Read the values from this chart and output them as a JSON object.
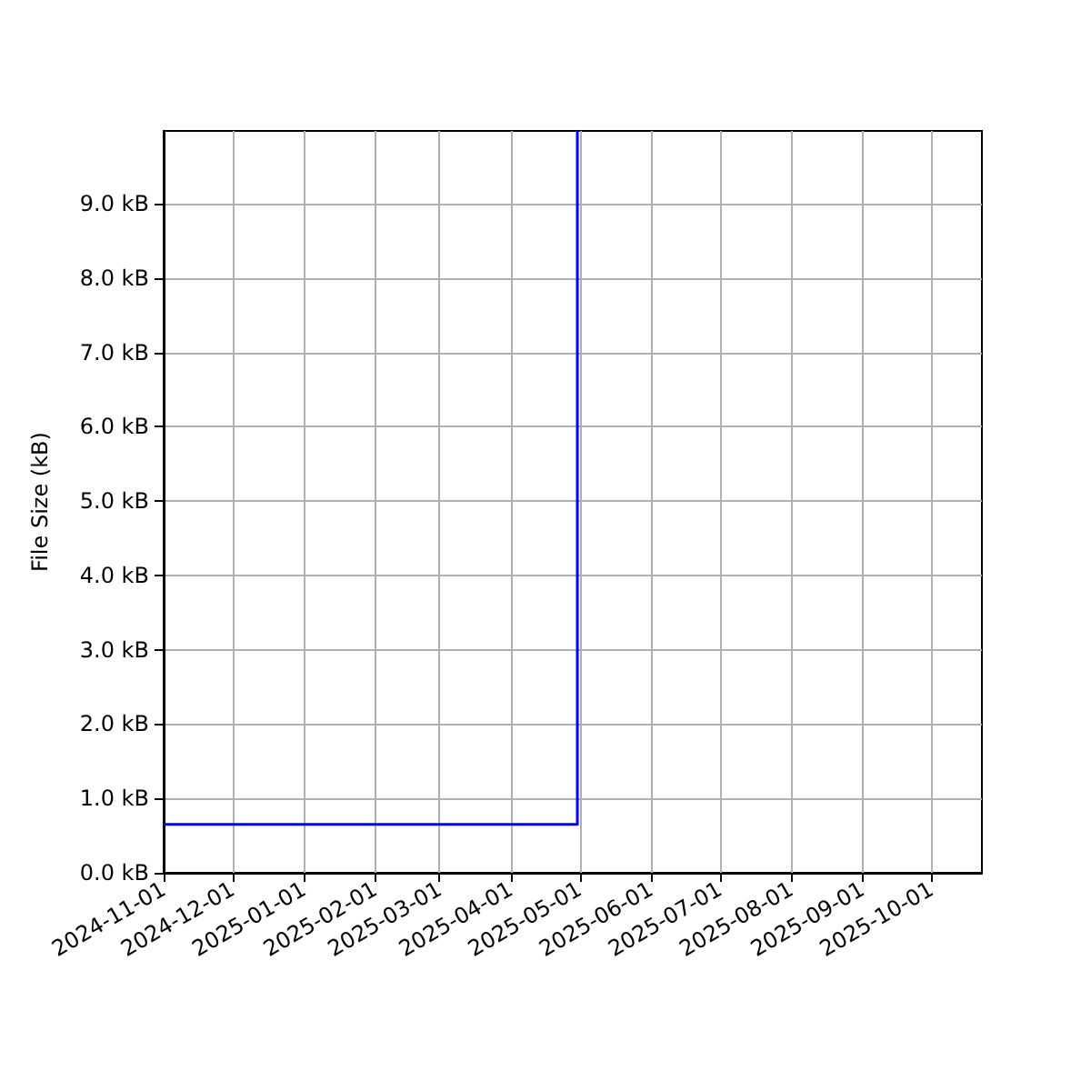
{
  "chart_data": {
    "type": "step",
    "ylabel": "File Size (kB)",
    "series": [
      {
        "color": "#0000ff",
        "x": [
          "2024-11-01",
          "2025-04-30"
        ],
        "values": [
          0.65,
          9.98
        ]
      }
    ],
    "xlim": [
      "2024-11-01",
      "2025-10-23"
    ],
    "xticks": [
      "2024-11-01",
      "2024-12-01",
      "2025-01-01",
      "2025-02-01",
      "2025-03-01",
      "2025-04-01",
      "2025-05-01",
      "2025-06-01",
      "2025-07-01",
      "2025-08-01",
      "2025-09-01",
      "2025-10-01"
    ],
    "ylim": [
      0,
      9.98
    ],
    "yticks": [
      {
        "value": 0,
        "label": "0.0 kB"
      },
      {
        "value": 1,
        "label": "1.0 kB"
      },
      {
        "value": 2,
        "label": "2.0 kB"
      },
      {
        "value": 3,
        "label": "3.0 kB"
      },
      {
        "value": 4,
        "label": "4.0 kB"
      },
      {
        "value": 5,
        "label": "5.0 kB"
      },
      {
        "value": 6,
        "label": "6.0 kB"
      },
      {
        "value": 7,
        "label": "7.0 kB"
      },
      {
        "value": 8,
        "label": "8.0 kB"
      },
      {
        "value": 9,
        "label": "9.0 kB"
      }
    ],
    "grid": true
  }
}
